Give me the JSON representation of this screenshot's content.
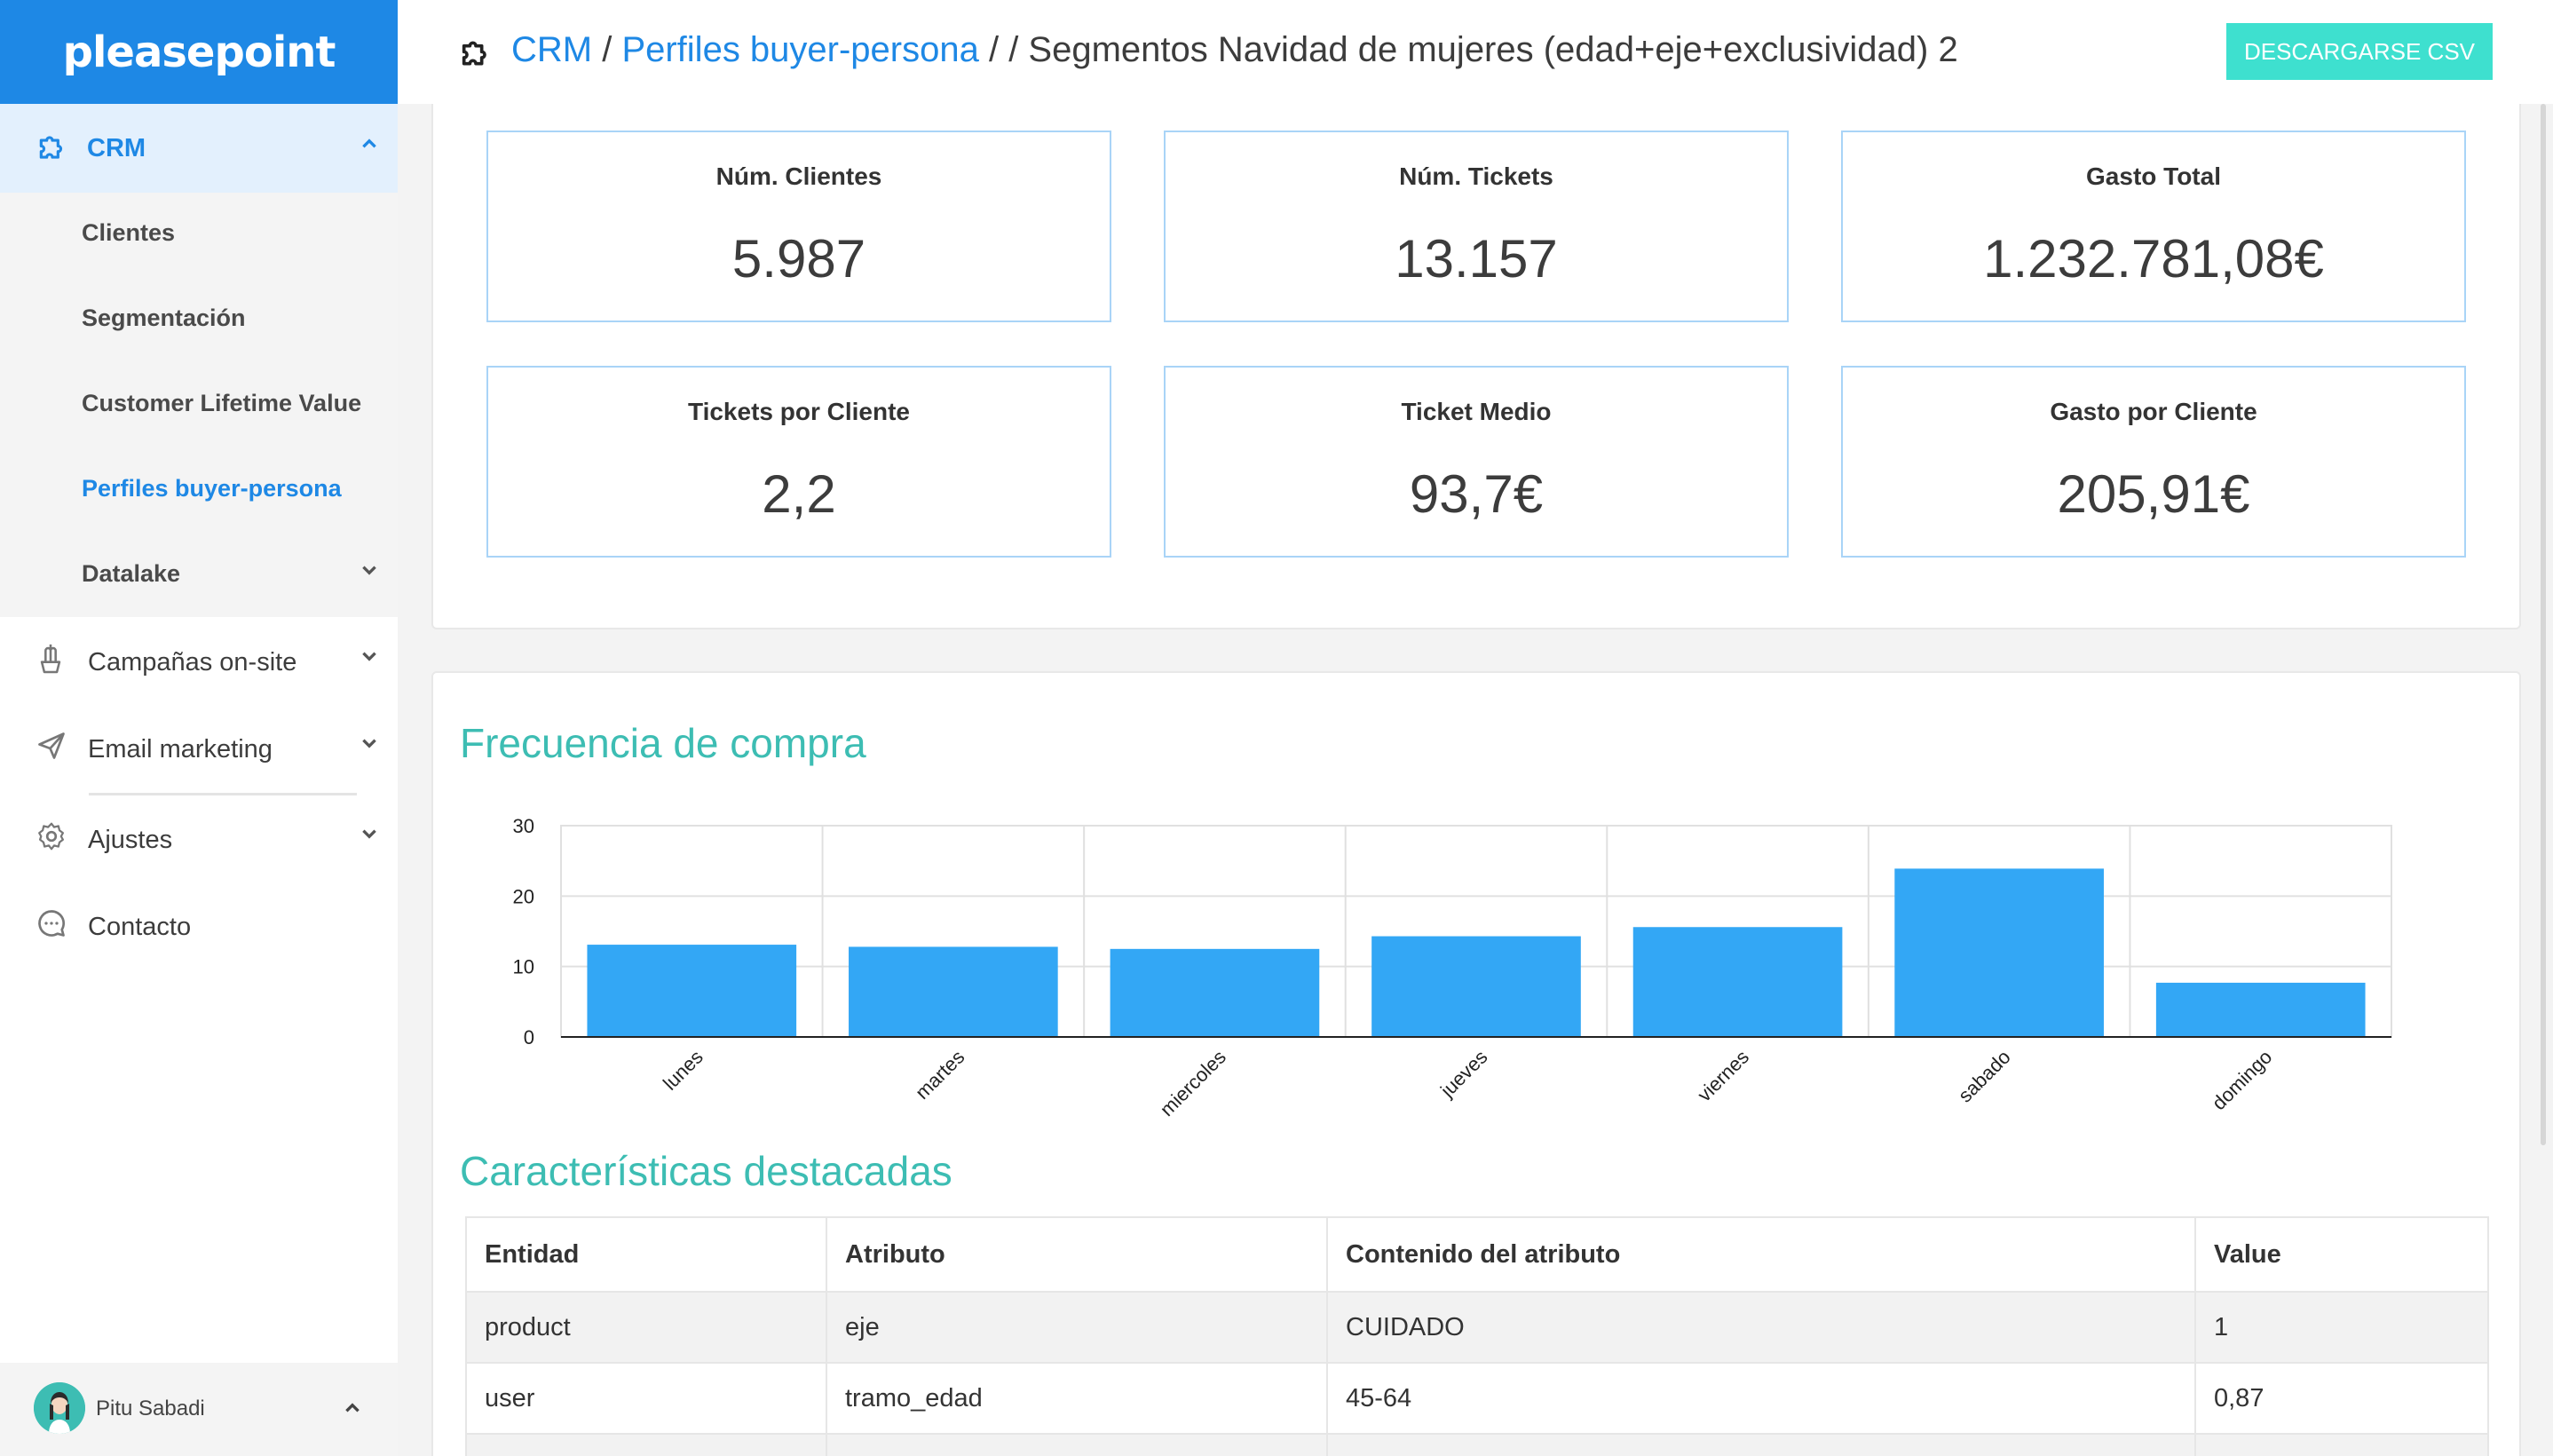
{
  "sidebar": {
    "logo": "pleasepoint",
    "crm_label": "CRM",
    "crm_items": [
      {
        "label": "Clientes"
      },
      {
        "label": "Segmentación"
      },
      {
        "label": "Customer Lifetime Value"
      },
      {
        "label": "Perfiles buyer-persona"
      },
      {
        "label": "Datalake"
      }
    ],
    "items": [
      {
        "label": "Campañas on-site",
        "icon": "cactus-icon"
      },
      {
        "label": "Email marketing",
        "icon": "paper-plane-icon"
      },
      {
        "label": "Ajustes",
        "icon": "gear-icon"
      },
      {
        "label": "Contacto",
        "icon": "chat-bubble-icon"
      }
    ],
    "user_name": "Pitu Sabadi"
  },
  "header": {
    "crumb_crm": "CRM",
    "sep1": " / ",
    "crumb_profiles": "Perfiles buyer-persona",
    "rest": " / / Segmentos Navidad de mujeres (edad+eje+exclusividad) 2",
    "csv_button": "DESCARGARSE CSV"
  },
  "kpis": [
    {
      "title": "Núm. Clientes",
      "value": "5.987"
    },
    {
      "title": "Núm. Tickets",
      "value": "13.157"
    },
    {
      "title": "Gasto Total",
      "value": "1.232.781,08€"
    },
    {
      "title": "Tickets por Cliente",
      "value": "2,2"
    },
    {
      "title": "Ticket Medio",
      "value": "93,7€"
    },
    {
      "title": "Gasto por Cliente",
      "value": "205,91€"
    }
  ],
  "sections": {
    "frequency_title": "Frecuencia de compra",
    "features_title": "Características destacadas"
  },
  "chart_data": {
    "type": "bar",
    "categories": [
      "lunes",
      "martes",
      "miercoles",
      "jueves",
      "viernes",
      "sabado",
      "domingo"
    ],
    "values": [
      13.1,
      12.8,
      12.5,
      14.3,
      15.6,
      23.9,
      7.7
    ],
    "ylim": [
      0,
      30
    ],
    "yticks": [
      0,
      10,
      20,
      30
    ],
    "title": "",
    "xlabel": "",
    "ylabel": "",
    "grid": true,
    "bar_color": "#33a7f5"
  },
  "table": {
    "headers": [
      "Entidad",
      "Atributo",
      "Contenido del atributo",
      "Value"
    ],
    "rows": [
      [
        "product",
        "eje",
        "CUIDADO",
        "1"
      ],
      [
        "user",
        "tramo_edad",
        "45-64",
        "0,87"
      ],
      [
        "",
        "",
        "",
        ""
      ]
    ]
  },
  "colors": {
    "brand_blue": "#1e88e5",
    "teal": "#3dbdb3",
    "csv_button": "#3ee0cf"
  }
}
